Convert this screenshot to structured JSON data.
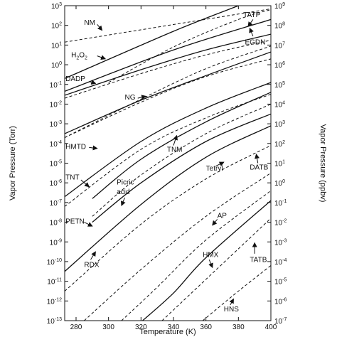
{
  "chart_data": {
    "type": "line",
    "xlabel": "Temperature (K)",
    "ylabel": "Vapor Pressure (Torr)",
    "y2label": "Vapor Pressure (ppbv)",
    "xlim": [
      273,
      400
    ],
    "ylim_log10": [
      -13,
      3
    ],
    "y2lim_log10": [
      -7,
      9
    ],
    "x_ticks": [
      280,
      300,
      320,
      340,
      360,
      380,
      400
    ],
    "y_ticks_log10": [
      -13,
      -12,
      -11,
      -10,
      -9,
      -8,
      -7,
      -6,
      -5,
      -4,
      -3,
      -2,
      -1,
      0,
      1,
      2,
      3
    ],
    "y2_ticks_log10": [
      -7,
      -6,
      -5,
      -4,
      -3,
      -2,
      -1,
      0,
      1,
      2,
      3,
      4,
      5,
      6,
      7,
      8,
      9
    ],
    "y_tick_labels": [
      "10",
      "10",
      "10",
      "10",
      "10",
      "10",
      "10",
      "10",
      "10",
      "10",
      "10",
      "10",
      "10",
      "10",
      "10",
      "10",
      "10"
    ],
    "y_tick_exponents": [
      "-13",
      "-12",
      "-11",
      "-10",
      "-9",
      "-8",
      "-7",
      "-6",
      "-5",
      "-4",
      "-3",
      "-2",
      "-1",
      "0",
      "1",
      "2",
      "3"
    ],
    "y2_tick_labels": [
      "10",
      "10",
      "10",
      "10",
      "10",
      "10",
      "10",
      "10",
      "10",
      "10",
      "10",
      "10",
      "10",
      "10",
      "10",
      "10",
      "10"
    ],
    "y2_tick_exponents": [
      "-7",
      "-6",
      "-5",
      "-4",
      "-3",
      "-2",
      "-1",
      "0",
      "1",
      "2",
      "3",
      "4",
      "5",
      "6",
      "7",
      "8",
      "9"
    ],
    "grid": false,
    "series": [
      {
        "name": "NM",
        "style": "dashed",
        "x": [
          273,
          400
        ],
        "log10_y": [
          1.15,
          2.84
        ]
      },
      {
        "name": "TATP",
        "style": "solid",
        "x": [
          273,
          340,
          380
        ],
        "log10_y": [
          -0.7,
          1.7,
          3.0
        ]
      },
      {
        "name": "EGDN",
        "style": "dashed",
        "x": [
          300,
          340,
          380,
          400
        ],
        "log10_y": [
          -0.9,
          0.9,
          2.3,
          2.8
        ]
      },
      {
        "name": "H2O2",
        "style": "solid",
        "x": [
          273,
          340,
          400
        ],
        "log10_y": [
          -1.35,
          0.75,
          2.3
        ]
      },
      {
        "name": "DADP",
        "style": "solid",
        "x": [
          273,
          320,
          360,
          400
        ],
        "log10_y": [
          -1.55,
          -0.25,
          0.75,
          1.55
        ]
      },
      {
        "name": "NG",
        "style": "dashed",
        "x": [
          273,
          320,
          360,
          400
        ],
        "log10_y": [
          -1.7,
          -0.45,
          0.5,
          1.25
        ]
      },
      {
        "name": "HMTD",
        "style": "solid",
        "x": [
          273,
          320,
          360,
          400
        ],
        "log10_y": [
          -3.5,
          -1.8,
          -0.55,
          0.65
        ]
      },
      {
        "name": "curve-dashed-2",
        "style": "dashed",
        "x": [
          273,
          320,
          360,
          400
        ],
        "log10_y": [
          -3.7,
          -1.9,
          -0.6,
          0.3
        ]
      },
      {
        "name": "TNM",
        "style": "dashed",
        "x": [
          273,
          320,
          360,
          400
        ],
        "log10_y": [
          -3.7,
          -1.75,
          -0.2,
          0.95
        ]
      },
      {
        "name": "TNT",
        "style": "solid",
        "x": [
          273,
          320,
          360,
          400
        ],
        "log10_y": [
          -6.7,
          -3.9,
          -2.2,
          -0.9
        ]
      },
      {
        "name": "Picric acid",
        "style": "dashed",
        "x": [
          273,
          320,
          360,
          400
        ],
        "log10_y": [
          -7.2,
          -4.3,
          -2.7,
          -1.5
        ]
      },
      {
        "name": "curve-solid-a",
        "style": "solid",
        "x": [
          290,
          320,
          360,
          400
        ],
        "log10_y": [
          -6.8,
          -4.8,
          -2.9,
          -1.4
        ]
      },
      {
        "name": "Tetryl",
        "style": "dashed",
        "x": [
          290,
          320,
          360,
          400
        ],
        "log10_y": [
          -7.7,
          -5.6,
          -3.5,
          -2.0
        ]
      },
      {
        "name": "DATB",
        "style": "solid",
        "x": [
          290,
          320,
          360,
          400
        ],
        "log10_y": [
          -8.0,
          -6.0,
          -3.9,
          -2.5
        ]
      },
      {
        "name": "PETN",
        "style": "solid",
        "x": [
          273,
          320,
          360,
          400
        ],
        "log10_y": [
          -10.5,
          -7.1,
          -4.7,
          -3.1
        ]
      },
      {
        "name": "RDX",
        "style": "dashed",
        "x": [
          273,
          320,
          360,
          400
        ],
        "log10_y": [
          -11.5,
          -8.1,
          -5.8,
          -4.1
        ]
      },
      {
        "name": "AP",
        "style": "dashed",
        "x": [
          285,
          320,
          360,
          400
        ],
        "log10_y": [
          -13.0,
          -10.4,
          -7.7,
          -5.5
        ]
      },
      {
        "name": "curve-dashed-9",
        "style": "dashed",
        "x": [
          308,
          330,
          360,
          400
        ],
        "log10_y": [
          -13.0,
          -11.3,
          -8.9,
          -6.4
        ]
      },
      {
        "name": "HMX",
        "style": "solid",
        "x": [
          321,
          340,
          360,
          400
        ],
        "log10_y": [
          -13.0,
          -11.6,
          -9.8,
          -6.9
        ]
      },
      {
        "name": "TATB",
        "style": "dashed",
        "x": [
          333,
          360,
          400
        ],
        "log10_y": [
          -13.0,
          -10.9,
          -7.8
        ]
      },
      {
        "name": "HNS",
        "style": "dashed",
        "x": [
          358,
          380,
          400
        ],
        "log10_y": [
          -13.0,
          -11.5,
          -10.2
        ]
      }
    ],
    "labels": [
      {
        "text": "NM",
        "anchor_x": 285,
        "anchor_log10": 2.15
      },
      {
        "text": "TATP",
        "anchor_x": 383,
        "anchor_log10": 2.55
      },
      {
        "text": "EGDN",
        "anchor_x": 384,
        "anchor_log10": 1.15
      },
      {
        "text": "H",
        "sub": "2",
        "text2": "O",
        "sub2": "2",
        "anchor_x": 277,
        "anchor_log10": 0.5
      },
      {
        "text": "DADP",
        "anchor_x": 273.5,
        "anchor_log10": -0.7
      },
      {
        "text": "NG",
        "anchor_x": 310,
        "anchor_log10": -1.65
      },
      {
        "text": "HMTD",
        "anchor_x": 273.5,
        "anchor_log10": -4.15
      },
      {
        "text": "TNM",
        "anchor_x": 336,
        "anchor_log10": -4.3
      },
      {
        "text": "TNT",
        "anchor_x": 273.5,
        "anchor_log10": -5.7
      },
      {
        "text": "Picric",
        "anchor_x": 305,
        "anchor_log10": -5.95
      },
      {
        "text": "acid",
        "anchor_x": 305,
        "anchor_log10": -6.45
      },
      {
        "text": "Tetryl",
        "anchor_x": 360,
        "anchor_log10": -5.25
      },
      {
        "text": "DATB",
        "anchor_x": 387,
        "anchor_log10": -5.2
      },
      {
        "text": "PETN",
        "anchor_x": 273.5,
        "anchor_log10": -7.95
      },
      {
        "text": "AP",
        "anchor_x": 367,
        "anchor_log10": -7.65
      },
      {
        "text": "RDX",
        "anchor_x": 285,
        "anchor_log10": -10.15
      },
      {
        "text": "HMX",
        "anchor_x": 358,
        "anchor_log10": -9.65
      },
      {
        "text": "TATB",
        "anchor_x": 387,
        "anchor_log10": -9.9
      },
      {
        "text": "HNS",
        "anchor_x": 371,
        "anchor_log10": -12.4
      }
    ],
    "arrows": [
      {
        "from_x": 293,
        "from_log10": 2.05,
        "to_x": 296,
        "to_log10": 1.75
      },
      {
        "from_x": 389,
        "from_log10": 2.3,
        "to_x": 386,
        "to_log10": 1.95
      },
      {
        "from_x": 389,
        "from_log10": 1.45,
        "to_x": 387,
        "to_log10": 1.85
      },
      {
        "from_x": 293,
        "from_log10": 0.45,
        "to_x": 298,
        "to_log10": 0.3
      },
      {
        "from_x": 288,
        "from_log10": -0.85,
        "to_x": 292,
        "to_log10": -0.95
      },
      {
        "from_x": 318,
        "from_log10": -1.7,
        "to_x": 323,
        "to_log10": -1.6
      },
      {
        "from_x": 288,
        "from_log10": -4.2,
        "to_x": 293,
        "to_log10": -4.25
      },
      {
        "from_x": 340,
        "from_log10": -4.1,
        "to_x": 342,
        "to_log10": -3.6
      },
      {
        "from_x": 283,
        "from_log10": -5.85,
        "to_x": 288,
        "to_log10": -6.2
      },
      {
        "from_x": 310,
        "from_log10": -6.75,
        "to_x": 308,
        "to_log10": -7.15
      },
      {
        "from_x": 366,
        "from_log10": -5.15,
        "to_x": 371,
        "to_log10": -4.95
      },
      {
        "from_x": 392,
        "from_log10": -5.0,
        "to_x": 391,
        "to_log10": -4.55
      },
      {
        "from_x": 285,
        "from_log10": -8.0,
        "to_x": 290,
        "to_log10": -8.2
      },
      {
        "from_x": 367,
        "from_log10": -7.85,
        "to_x": 364,
        "to_log10": -8.15
      },
      {
        "from_x": 289,
        "from_log10": -9.9,
        "to_x": 292,
        "to_log10": -9.5
      },
      {
        "from_x": 362,
        "from_log10": -9.9,
        "to_x": 364,
        "to_log10": -10.3
      },
      {
        "from_x": 390,
        "from_log10": -9.6,
        "to_x": 390,
        "to_log10": -9.05
      },
      {
        "from_x": 375,
        "from_log10": -12.2,
        "to_x": 377,
        "to_log10": -11.9
      }
    ]
  }
}
